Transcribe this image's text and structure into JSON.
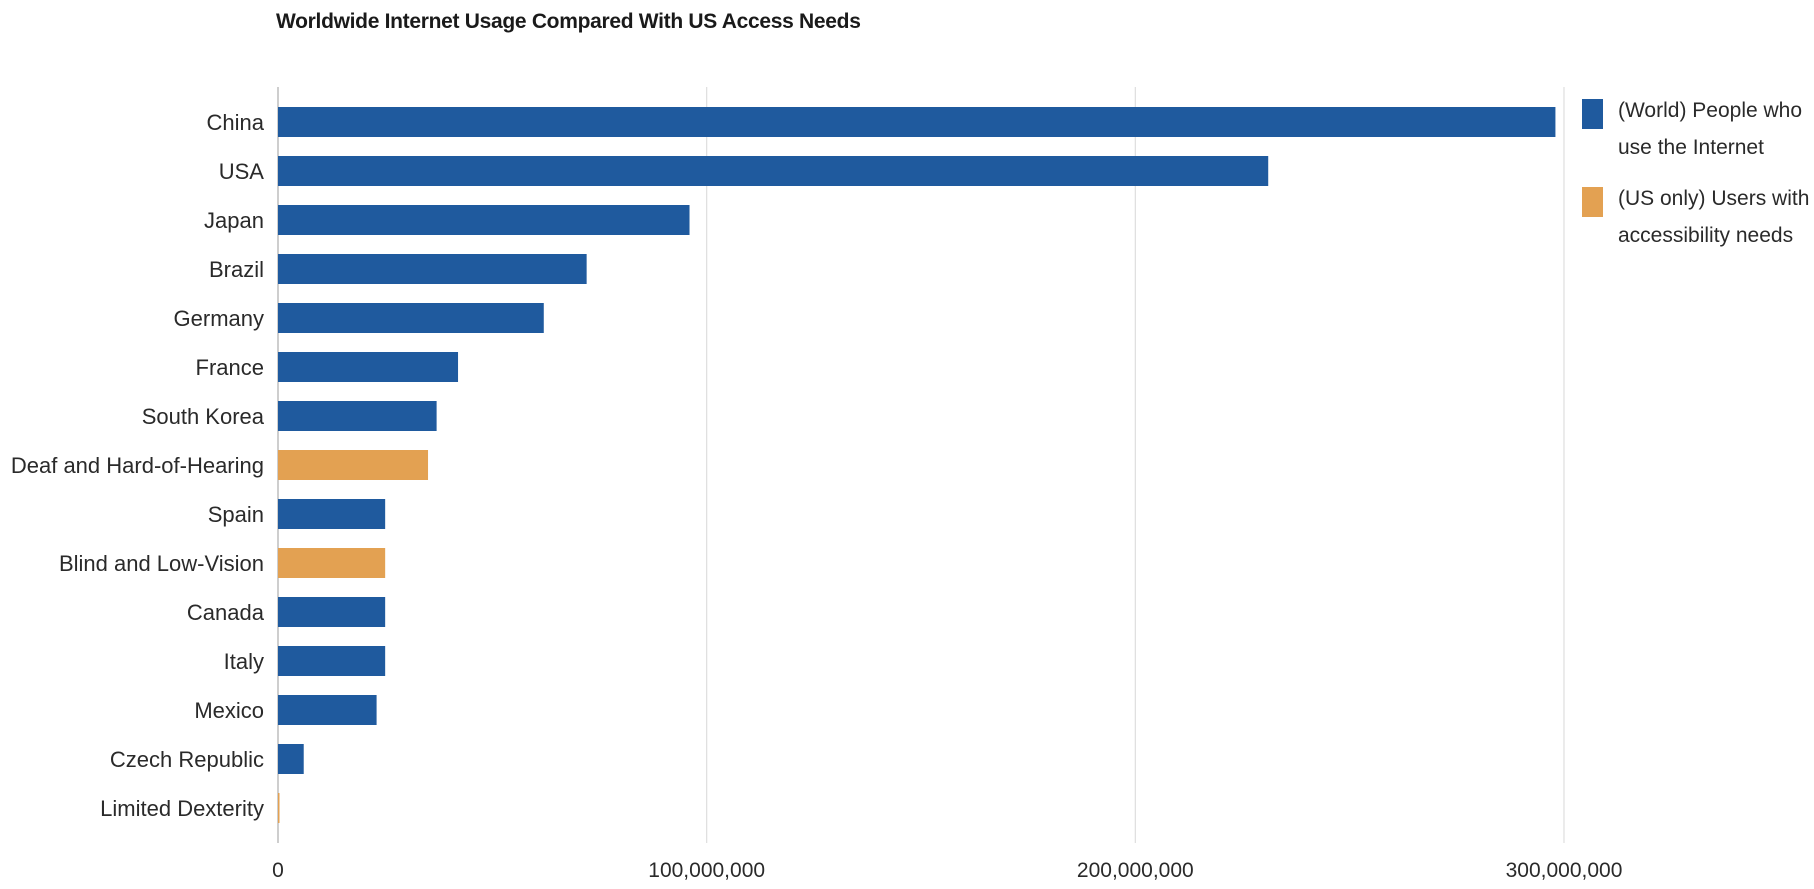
{
  "chart_data": {
    "type": "bar",
    "orientation": "horizontal",
    "title": "Worldwide Internet Usage Compared With US Access Needs",
    "categories": [
      "China",
      "USA",
      "Japan",
      "Brazil",
      "Germany",
      "France",
      "South Korea",
      "Deaf and Hard-of-Hearing",
      "Spain",
      "Blind and Low-Vision",
      "Canada",
      "Italy",
      "Mexico",
      "Czech Republic",
      "Limited Dexterity"
    ],
    "series": [
      {
        "name": "(World) People who use the Internet",
        "color": "#1f5a9e",
        "values": [
          298000000,
          231000000,
          96000000,
          72000000,
          62000000,
          42000000,
          37000000,
          null,
          25000000,
          null,
          25000000,
          25000000,
          23000000,
          6000000,
          null
        ]
      },
      {
        "name": "(US only) Users with accessibility needs",
        "color": "#e3a152",
        "values": [
          null,
          null,
          null,
          null,
          null,
          null,
          null,
          35000000,
          null,
          25000000,
          null,
          null,
          null,
          null,
          300000
        ]
      }
    ],
    "xlim": [
      0,
      330000000
    ],
    "xticks": [
      0,
      100000000,
      200000000,
      300000000
    ],
    "xtick_labels": [
      "0",
      "100,000,000",
      "200,000,000",
      "300,000,000"
    ],
    "grid": true,
    "legend_position": "right"
  }
}
